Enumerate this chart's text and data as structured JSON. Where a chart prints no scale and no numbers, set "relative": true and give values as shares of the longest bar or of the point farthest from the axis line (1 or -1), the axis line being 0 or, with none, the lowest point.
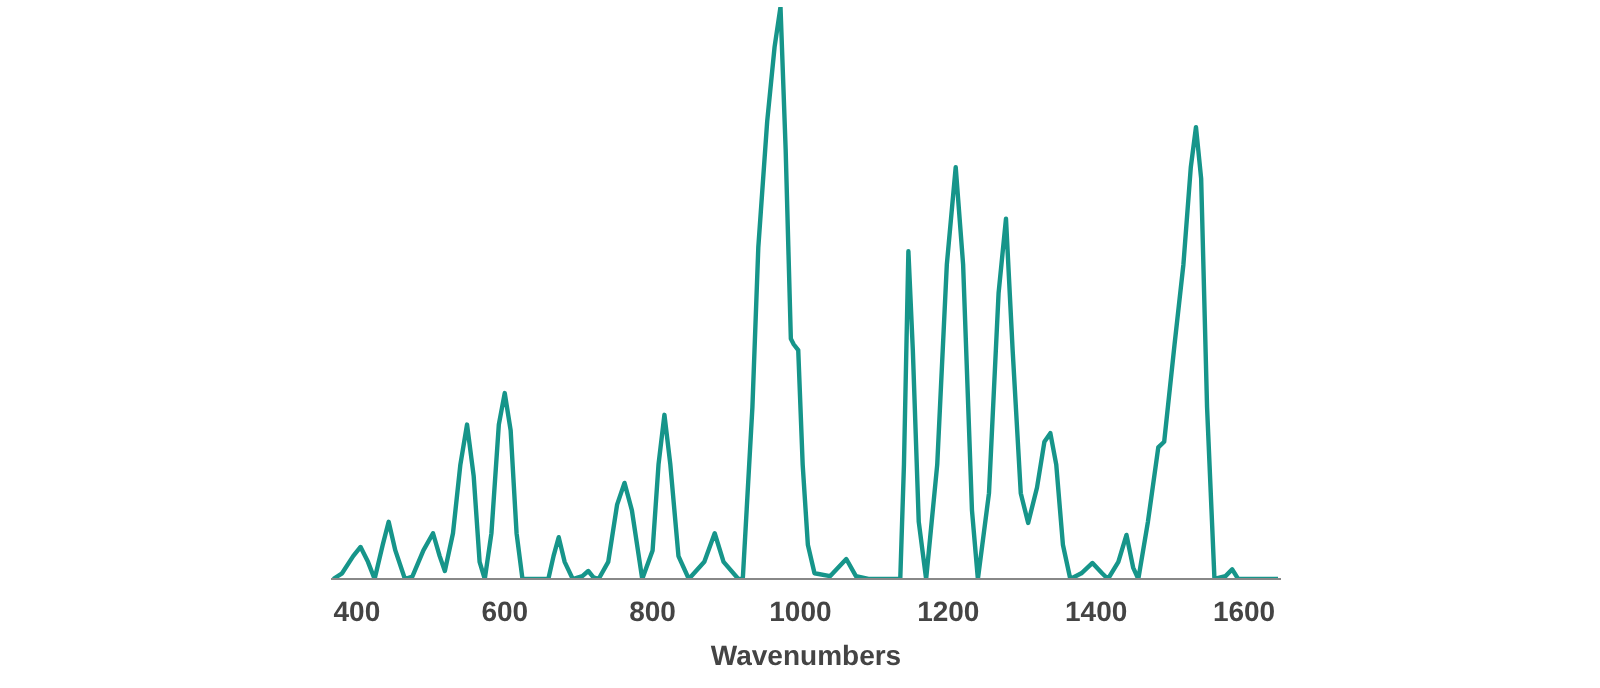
{
  "chart_data": {
    "type": "line",
    "relative": true,
    "xlabel": "Wavenumbers",
    "xlim": [
      365,
      1650
    ],
    "xticks": [
      400,
      600,
      800,
      1000,
      1200,
      1400,
      1600
    ],
    "grid": false,
    "tick_labels": "x",
    "x": [
      368,
      380,
      395,
      405,
      415,
      424,
      435,
      443,
      452,
      465,
      475,
      490,
      503,
      512,
      519,
      530,
      540,
      549,
      558,
      566,
      573,
      582,
      592,
      600,
      608,
      616,
      624,
      659,
      666,
      673,
      681,
      692,
      705,
      713,
      720,
      727,
      740,
      752,
      762,
      772,
      786,
      800,
      808,
      816,
      824,
      835,
      849,
      870,
      884,
      896,
      916,
      922,
      935,
      943,
      955,
      965,
      973,
      980,
      987,
      991,
      997,
      1003,
      1010,
      1019,
      1040,
      1062,
      1075,
      1092,
      1135,
      1140,
      1146,
      1152,
      1160,
      1170,
      1185,
      1198,
      1210,
      1220,
      1232,
      1240,
      1255,
      1268,
      1278,
      1287,
      1298,
      1308,
      1320,
      1330,
      1338,
      1346,
      1355,
      1365,
      1380,
      1395,
      1408,
      1416,
      1430,
      1441,
      1450,
      1457,
      1470,
      1484,
      1492,
      1506,
      1518,
      1528,
      1535,
      1542,
      1550,
      1560,
      1575,
      1584,
      1592,
      1646
    ],
    "series": [
      {
        "color": "#16958a",
        "values": [
          0,
          0.01,
          0.04,
          0.056,
          0.03,
          0,
          0.06,
          0.1,
          0.05,
          0,
          0.004,
          0.05,
          0.08,
          0.04,
          0.014,
          0.08,
          0.2,
          0.27,
          0.18,
          0.03,
          0,
          0.08,
          0.27,
          0.325,
          0.26,
          0.08,
          0,
          0,
          0.04,
          0.073,
          0.03,
          0,
          0.005,
          0.014,
          0.003,
          0,
          0.03,
          0.13,
          0.168,
          0.12,
          0,
          0.05,
          0.2,
          0.287,
          0.2,
          0.04,
          0,
          0.03,
          0.08,
          0.03,
          0,
          0,
          0.3,
          0.58,
          0.8,
          0.93,
          1.0,
          0.75,
          0.42,
          0.41,
          0.4,
          0.2,
          0.06,
          0.01,
          0.005,
          0.035,
          0.005,
          0,
          0,
          0.2,
          0.573,
          0.4,
          0.1,
          0,
          0.2,
          0.55,
          0.72,
          0.55,
          0.12,
          0,
          0.15,
          0.5,
          0.63,
          0.4,
          0.15,
          0.098,
          0.16,
          0.24,
          0.255,
          0.2,
          0.06,
          0,
          0.01,
          0.028,
          0.01,
          0,
          0.03,
          0.077,
          0.02,
          0,
          0.1,
          0.23,
          0.24,
          0.41,
          0.55,
          0.72,
          0.79,
          0.7,
          0.3,
          0,
          0.005,
          0.017,
          0,
          0
        ]
      }
    ]
  }
}
